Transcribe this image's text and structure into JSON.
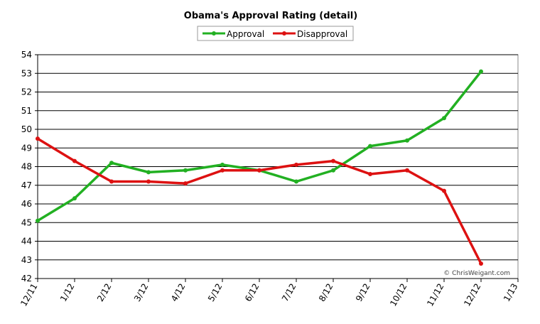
{
  "chart_data": {
    "type": "line",
    "title": "Obama's Approval Rating (detail)",
    "xlabel": "",
    "ylabel": "",
    "x": [
      "12/11",
      "1/12",
      "2/12",
      "3/12",
      "4/12",
      "5/12",
      "6/12",
      "7/12",
      "8/12",
      "9/12",
      "10/12",
      "11/12",
      "12/12",
      "1/13"
    ],
    "series": [
      {
        "name": "Approval",
        "color": "#22b022",
        "values": [
          45.1,
          46.3,
          48.2,
          47.7,
          47.8,
          48.1,
          47.8,
          47.2,
          47.8,
          49.1,
          49.4,
          50.6,
          53.1,
          null
        ]
      },
      {
        "name": "Disapproval",
        "color": "#dd1111",
        "values": [
          49.5,
          48.3,
          47.2,
          47.2,
          47.1,
          47.8,
          47.8,
          48.1,
          48.3,
          47.6,
          47.8,
          46.7,
          42.8,
          null
        ]
      }
    ],
    "ylim": [
      42,
      54
    ],
    "yticks": [
      42,
      43,
      44,
      45,
      46,
      47,
      48,
      49,
      50,
      51,
      52,
      53,
      54
    ],
    "grid": true,
    "legend_position": "top-center",
    "watermark": "© ChrisWeigant.com"
  }
}
